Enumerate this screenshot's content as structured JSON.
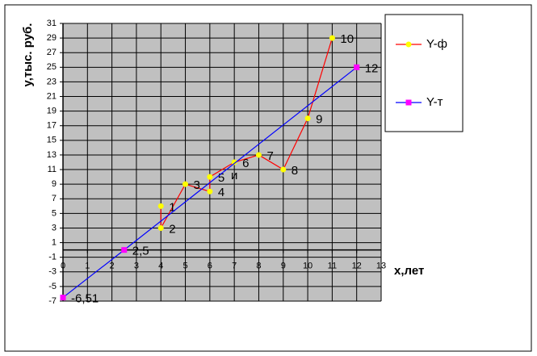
{
  "chart_data": {
    "type": "scatter",
    "x_label": "х,лет",
    "y_label": "у,тыс. руб.",
    "xlim": [
      0,
      13
    ],
    "ylim": [
      -7,
      31
    ],
    "xticks": [
      0,
      1,
      2,
      3,
      4,
      5,
      6,
      7,
      8,
      9,
      10,
      11,
      12,
      13
    ],
    "yticks": [
      -7,
      -5,
      -3,
      -1,
      1,
      3,
      5,
      7,
      9,
      11,
      13,
      15,
      17,
      19,
      21,
      23,
      25,
      27,
      29,
      31
    ],
    "grid": true,
    "legend": "right",
    "annotations": [
      "и"
    ],
    "series": [
      {
        "name": "Y-ф",
        "color": "#ff0000",
        "marker_color": "#ffff00",
        "x": [
          4,
          4,
          5,
          6,
          6,
          7,
          8,
          9,
          10,
          11
        ],
        "values": [
          6,
          3,
          9,
          8,
          10,
          12,
          13,
          11,
          18,
          29
        ],
        "point_labels": [
          "1",
          "2",
          "3",
          "4",
          "5",
          "6",
          "7",
          "8",
          "9",
          "10"
        ]
      },
      {
        "name": "Y-т",
        "color": "#0000ff",
        "marker_color": "#ff00ff",
        "x": [
          0,
          2.5,
          12
        ],
        "values": [
          -6.51,
          0,
          25
        ],
        "point_labels": [
          "-6,51",
          "2,5",
          "12"
        ]
      }
    ]
  }
}
